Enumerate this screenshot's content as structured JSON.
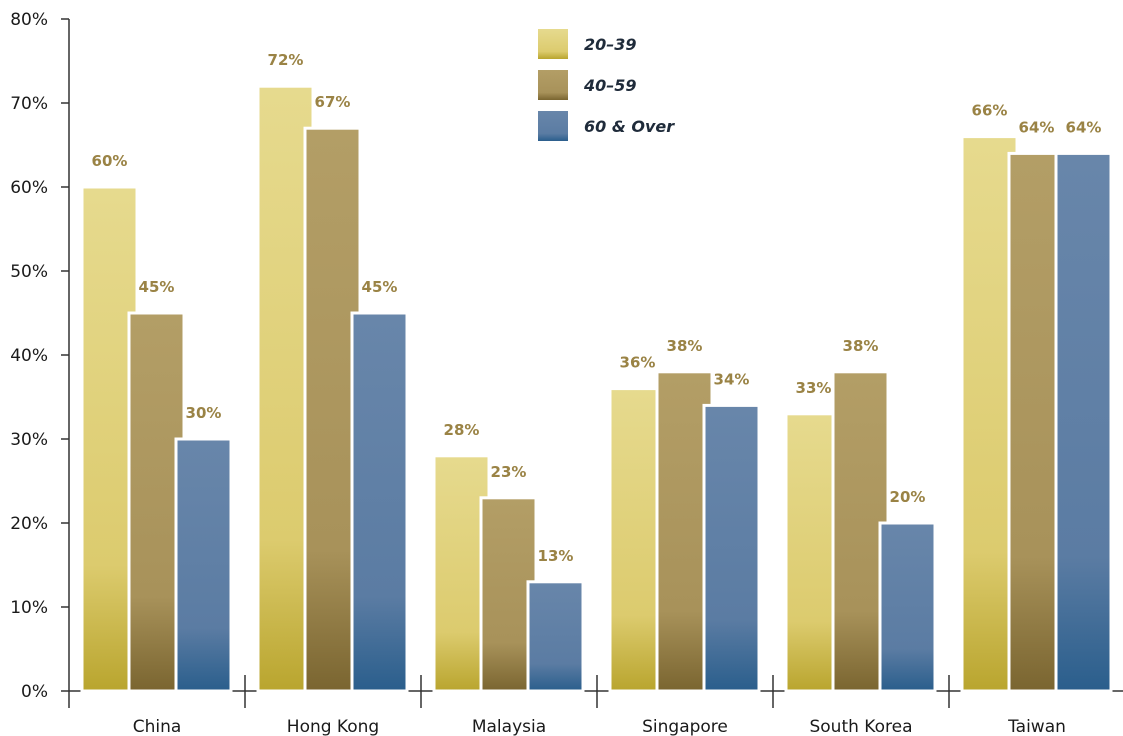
{
  "chart_data": {
    "type": "bar",
    "title": "",
    "xlabel": "",
    "ylabel": "",
    "categories": [
      "China",
      "Hong Kong",
      "Malaysia",
      "Singapore",
      "South Korea",
      "Taiwan"
    ],
    "series": [
      {
        "name": "20–39",
        "values": [
          60,
          72,
          28,
          36,
          33,
          66
        ],
        "labels": [
          "60%",
          "72%",
          "28%",
          "36%",
          "33%",
          "66%"
        ],
        "color": "#e2d480"
      },
      {
        "name": "40–59",
        "values": [
          45,
          67,
          23,
          38,
          38,
          64
        ],
        "labels": [
          "45%",
          "67%",
          "23%",
          "38%",
          "38%",
          "64%"
        ],
        "color": "#b09a60"
      },
      {
        "name": "60 & Over",
        "values": [
          30,
          45,
          13,
          34,
          20,
          64
        ],
        "labels": [
          "30%",
          "45%",
          "13%",
          "34%",
          "20%",
          "64%"
        ],
        "color": "#6584a8"
      }
    ],
    "ylim": [
      0,
      80
    ],
    "yticks": [
      0,
      10,
      20,
      30,
      40,
      50,
      60,
      70,
      80
    ],
    "ytick_labels": [
      "0%",
      "10%",
      "20%",
      "30%",
      "40%",
      "50%",
      "60%",
      "70%",
      "80%"
    ],
    "grid": false,
    "legend_position": "top-center"
  }
}
